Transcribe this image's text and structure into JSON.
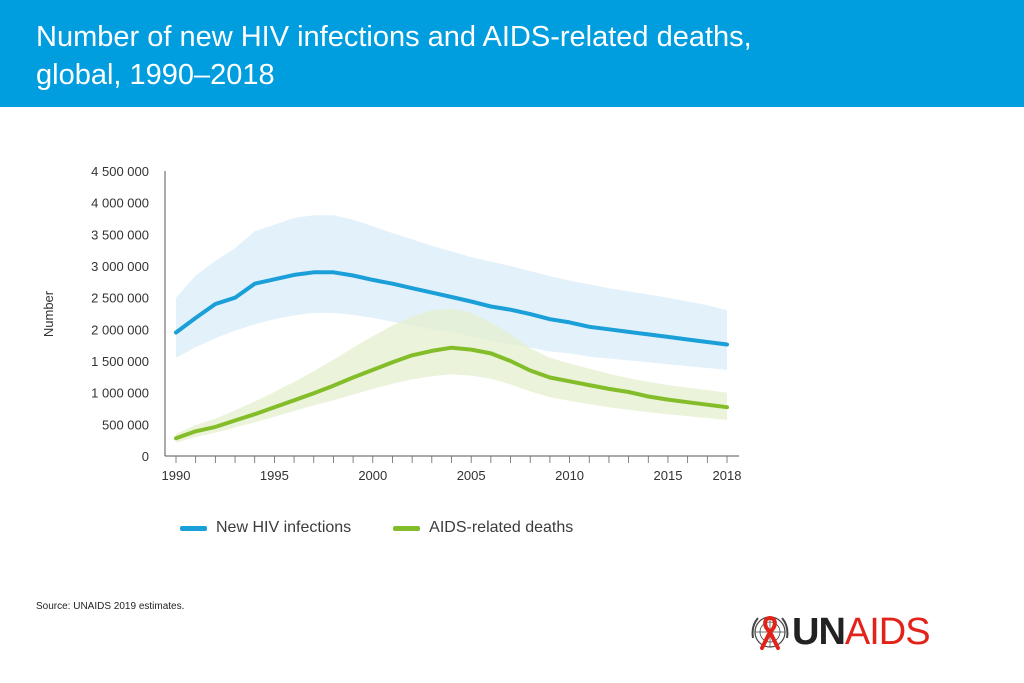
{
  "title_line1": "Number of new HIV infections and AIDS-related deaths,",
  "title_line2": "global, 1990–2018",
  "source": "Source: UNAIDS 2019 estimates.",
  "logo": {
    "part1": "UN",
    "part2": "AIDS",
    "emblem": "un-emblem-red-ribbon-icon"
  },
  "colors": {
    "header": "#009ddf",
    "infections_line": "#1a9fd9",
    "infections_band": "#dcedf9",
    "deaths_line": "#84bd2a",
    "deaths_band": "#e4efcd",
    "logo_red": "#e2231a"
  },
  "chart_data": {
    "type": "line",
    "title": "Number of new HIV infections and AIDS-related deaths, global, 1990–2018",
    "xlabel": "",
    "ylabel": "Number",
    "xlim": [
      1990,
      2018
    ],
    "ylim": [
      0,
      4500000
    ],
    "x_ticks": [
      1990,
      1995,
      2000,
      2005,
      2010,
      2015,
      2018
    ],
    "y_ticks": [
      0,
      500000,
      1000000,
      1500000,
      2000000,
      2500000,
      3000000,
      3500000,
      4000000,
      4500000
    ],
    "y_tick_labels": [
      "0",
      "500 000",
      "1 000 000",
      "1 500 000",
      "2 000 000",
      "2 500 000",
      "3 000 000",
      "3 500 000",
      "4 000 000",
      "4 500 000"
    ],
    "x": [
      1990,
      1991,
      1992,
      1993,
      1994,
      1995,
      1996,
      1997,
      1998,
      1999,
      2000,
      2001,
      2002,
      2003,
      2004,
      2005,
      2006,
      2007,
      2008,
      2009,
      2010,
      2011,
      2012,
      2013,
      2014,
      2015,
      2016,
      2017,
      2018
    ],
    "legend_position": "bottom",
    "series": [
      {
        "name": "New HIV infections",
        "values": [
          1950000,
          2180000,
          2400000,
          2500000,
          2720000,
          2790000,
          2860000,
          2900000,
          2900000,
          2850000,
          2780000,
          2720000,
          2650000,
          2580000,
          2510000,
          2440000,
          2360000,
          2310000,
          2240000,
          2160000,
          2110000,
          2040000,
          2000000,
          1960000,
          1920000,
          1880000,
          1840000,
          1800000,
          1760000
        ],
        "lower": [
          1550000,
          1720000,
          1860000,
          1980000,
          2080000,
          2160000,
          2220000,
          2260000,
          2260000,
          2230000,
          2180000,
          2120000,
          2060000,
          2000000,
          1950000,
          1890000,
          1820000,
          1770000,
          1710000,
          1650000,
          1620000,
          1570000,
          1540000,
          1510000,
          1480000,
          1450000,
          1420000,
          1390000,
          1360000
        ],
        "upper": [
          2500000,
          2850000,
          3080000,
          3280000,
          3550000,
          3650000,
          3760000,
          3800000,
          3800000,
          3730000,
          3630000,
          3520000,
          3420000,
          3320000,
          3230000,
          3140000,
          3070000,
          3000000,
          2920000,
          2840000,
          2770000,
          2710000,
          2650000,
          2600000,
          2550000,
          2500000,
          2440000,
          2380000,
          2300000
        ]
      },
      {
        "name": "AIDS-related deaths",
        "values": [
          280000,
          390000,
          460000,
          560000,
          660000,
          770000,
          880000,
          990000,
          1110000,
          1240000,
          1360000,
          1480000,
          1590000,
          1660000,
          1710000,
          1680000,
          1620000,
          1500000,
          1350000,
          1240000,
          1180000,
          1120000,
          1060000,
          1010000,
          940000,
          890000,
          850000,
          810000,
          770000
        ],
        "lower": [
          210000,
          300000,
          370000,
          450000,
          530000,
          620000,
          710000,
          800000,
          880000,
          970000,
          1060000,
          1140000,
          1210000,
          1260000,
          1290000,
          1270000,
          1220000,
          1130000,
          1020000,
          930000,
          870000,
          820000,
          770000,
          730000,
          690000,
          660000,
          630000,
          600000,
          570000
        ],
        "upper": [
          350000,
          490000,
          590000,
          720000,
          860000,
          1010000,
          1170000,
          1340000,
          1520000,
          1710000,
          1890000,
          2060000,
          2200000,
          2300000,
          2330000,
          2260000,
          2110000,
          1920000,
          1700000,
          1550000,
          1460000,
          1380000,
          1300000,
          1230000,
          1170000,
          1120000,
          1080000,
          1040000,
          1000000
        ]
      }
    ]
  }
}
